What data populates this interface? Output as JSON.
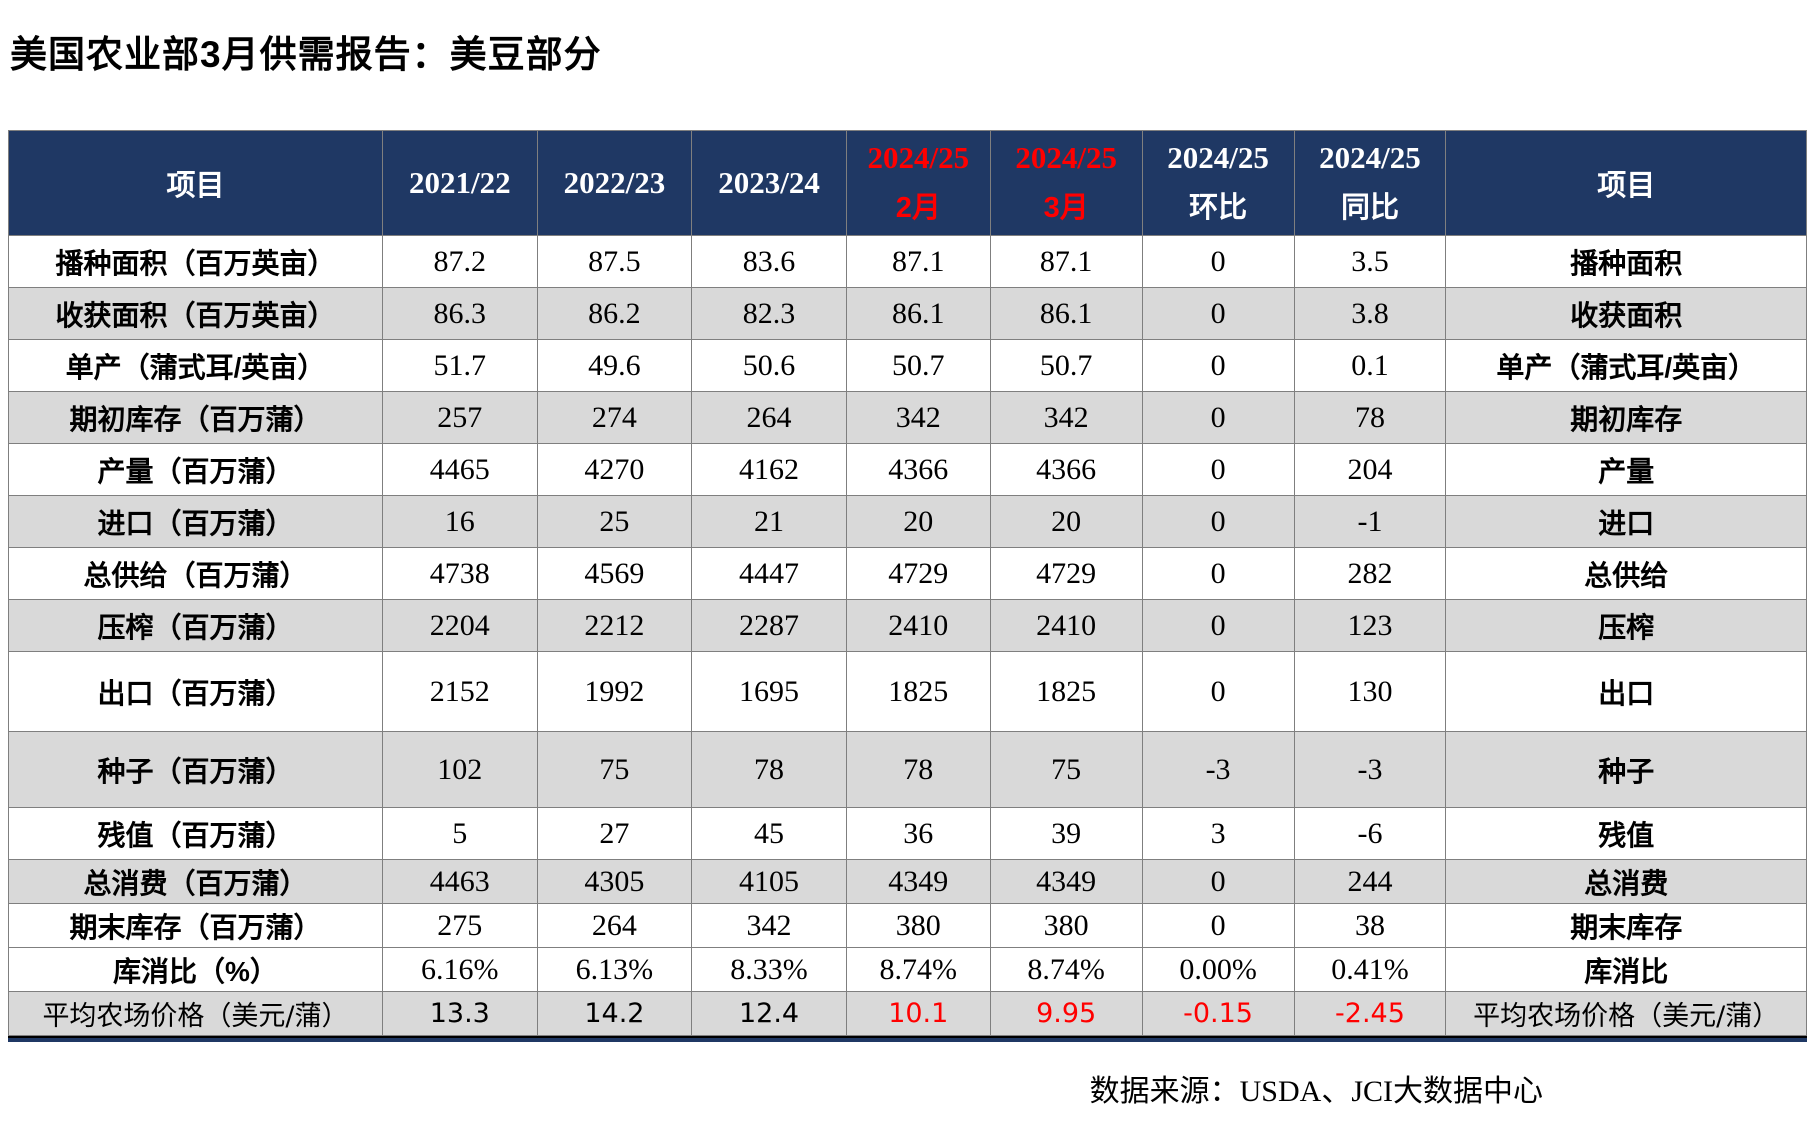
{
  "title": "美国农业部3月供需报告：美豆部分",
  "colors": {
    "header_bg": "#1f3864",
    "row_alt_bg": "#d9d9d9",
    "highlight_red": "#ff0000"
  },
  "table": {
    "headers": [
      {
        "id": "item-left",
        "label": "项目"
      },
      {
        "id": "2021-22",
        "label": "2021/22",
        "year": true
      },
      {
        "id": "2022-23",
        "label": "2022/23",
        "year": true
      },
      {
        "id": "2023-24",
        "label": "2023/24",
        "year": true
      },
      {
        "id": "2024-25-feb",
        "label": "2024/25",
        "sub": "2月",
        "red": true
      },
      {
        "id": "2024-25-mar",
        "label": "2024/25",
        "sub": "3月",
        "red": true
      },
      {
        "id": "2024-25-mom",
        "label": "2024/25",
        "sub": "环比"
      },
      {
        "id": "2024-25-yoy",
        "label": "2024/25",
        "sub": "同比"
      },
      {
        "id": "item-right",
        "label": "项目"
      }
    ],
    "rows": [
      {
        "id": "planted-area",
        "item": "播种面积（百万英亩）",
        "values": [
          "87.2",
          "87.5",
          "83.6",
          "87.1",
          "87.1",
          "0",
          "3.5"
        ],
        "item_right": "播种面积"
      },
      {
        "id": "harvested-area",
        "item": "收获面积（百万英亩）",
        "values": [
          "86.3",
          "86.2",
          "82.3",
          "86.1",
          "86.1",
          "0",
          "3.8"
        ],
        "item_right": "收获面积"
      },
      {
        "id": "yield",
        "item": "单产（蒲式耳/英亩）",
        "values": [
          "51.7",
          "49.6",
          "50.6",
          "50.7",
          "50.7",
          "0",
          "0.1"
        ],
        "item_right": "单产（蒲式耳/英亩）"
      },
      {
        "id": "beginning-stocks",
        "item": "期初库存（百万蒲）",
        "values": [
          "257",
          "274",
          "264",
          "342",
          "342",
          "0",
          "78"
        ],
        "item_right": "期初库存"
      },
      {
        "id": "production",
        "item": "产量（百万蒲）",
        "values": [
          "4465",
          "4270",
          "4162",
          "4366",
          "4366",
          "0",
          "204"
        ],
        "item_right": "产量"
      },
      {
        "id": "imports",
        "item": "进口（百万蒲）",
        "values": [
          "16",
          "25",
          "21",
          "20",
          "20",
          "0",
          "-1"
        ],
        "item_right": "进口"
      },
      {
        "id": "total-supply",
        "item": "总供给（百万蒲）",
        "values": [
          "4738",
          "4569",
          "4447",
          "4729",
          "4729",
          "0",
          "282"
        ],
        "item_right": "总供给"
      },
      {
        "id": "crush",
        "item": "压榨（百万蒲）",
        "values": [
          "2204",
          "2212",
          "2287",
          "2410",
          "2410",
          "0",
          "123"
        ],
        "item_right": "压榨"
      },
      {
        "id": "exports",
        "item": "出口（百万蒲）",
        "values": [
          "2152",
          "1992",
          "1695",
          "1825",
          "1825",
          "0",
          "130"
        ],
        "item_right": "出口"
      },
      {
        "id": "seed",
        "item": "种子（百万蒲）",
        "values": [
          "102",
          "75",
          "78",
          "78",
          "75",
          "-3",
          "-3"
        ],
        "item_right": "种子"
      },
      {
        "id": "residual",
        "item": "残值（百万蒲）",
        "values": [
          "5",
          "27",
          "45",
          "36",
          "39",
          "3",
          "-6"
        ],
        "item_right": "残值"
      },
      {
        "id": "total-use",
        "item": "总消费（百万蒲）",
        "values": [
          "4463",
          "4305",
          "4105",
          "4349",
          "4349",
          "0",
          "244"
        ],
        "item_right": "总消费"
      },
      {
        "id": "ending-stocks",
        "item": "期末库存（百万蒲）",
        "values": [
          "275",
          "264",
          "342",
          "380",
          "380",
          "0",
          "38"
        ],
        "item_right": "期末库存"
      },
      {
        "id": "stocks-to-use",
        "item": "库消比（%）",
        "values": [
          "6.16%",
          "6.13%",
          "8.33%",
          "8.74%",
          "8.74%",
          "0.00%",
          "0.41%"
        ],
        "item_right": "库消比"
      },
      {
        "id": "avg-farm-price",
        "item": "平均农场价格（美元/蒲）",
        "values": [
          "13.3",
          "14.2",
          "12.4",
          "10.1",
          "9.95",
          "-0.15",
          "-2.45"
        ],
        "item_right": "平均农场价格（美元/蒲）",
        "red_value_indexes": [
          3,
          4,
          5,
          6
        ]
      }
    ]
  },
  "footer": {
    "source": "数据来源：USDA、JCI大数据中心"
  }
}
